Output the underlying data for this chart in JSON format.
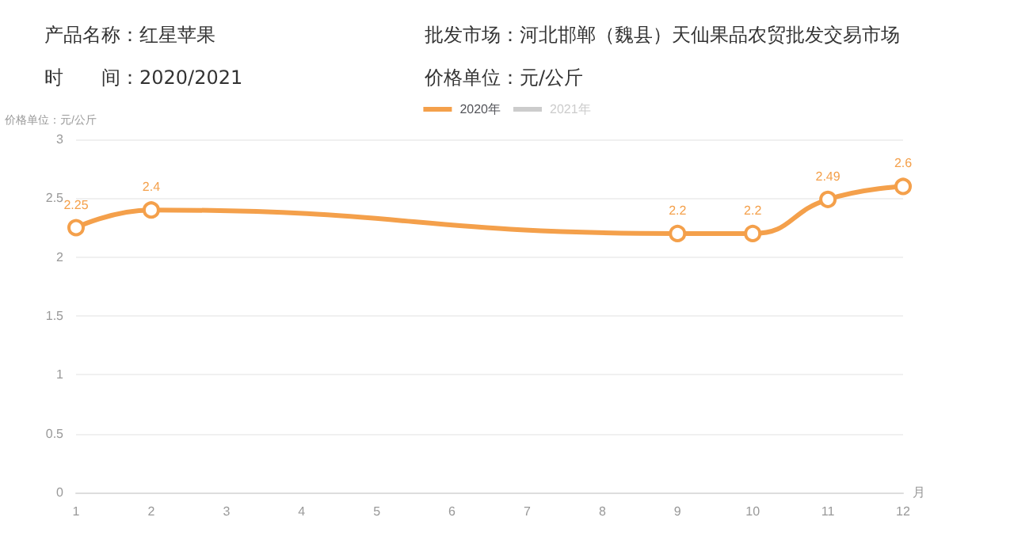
{
  "chart_data": {
    "type": "line",
    "annotations": [
      "产品名称：红星苹果",
      "批发市场：河北邯郸（魏县）天仙果品农贸批发交易市场",
      "时　　间：2020/2021",
      "价格单位：元/公斤"
    ],
    "ylabel": "价格单位：元/公斤",
    "xlabel": "月",
    "series": [
      {
        "name": "2020年",
        "color": "#f4a04b",
        "x": [
          1,
          2,
          9,
          10,
          11,
          12
        ],
        "values": [
          2.25,
          2.4,
          2.2,
          2.2,
          2.49,
          2.6
        ]
      },
      {
        "name": "2021年",
        "color": "#cccccc"
      }
    ],
    "xlim": [
      1,
      12
    ],
    "xticks": [
      1,
      2,
      3,
      4,
      5,
      6,
      7,
      8,
      9,
      10,
      11,
      12
    ],
    "ylim": [
      0,
      3
    ],
    "yticks": [
      0,
      0.5,
      1,
      1.5,
      2,
      2.5,
      3
    ],
    "grid": "y",
    "legend": "top",
    "marker": "circle",
    "data_labels": true,
    "line_style": "solid"
  }
}
